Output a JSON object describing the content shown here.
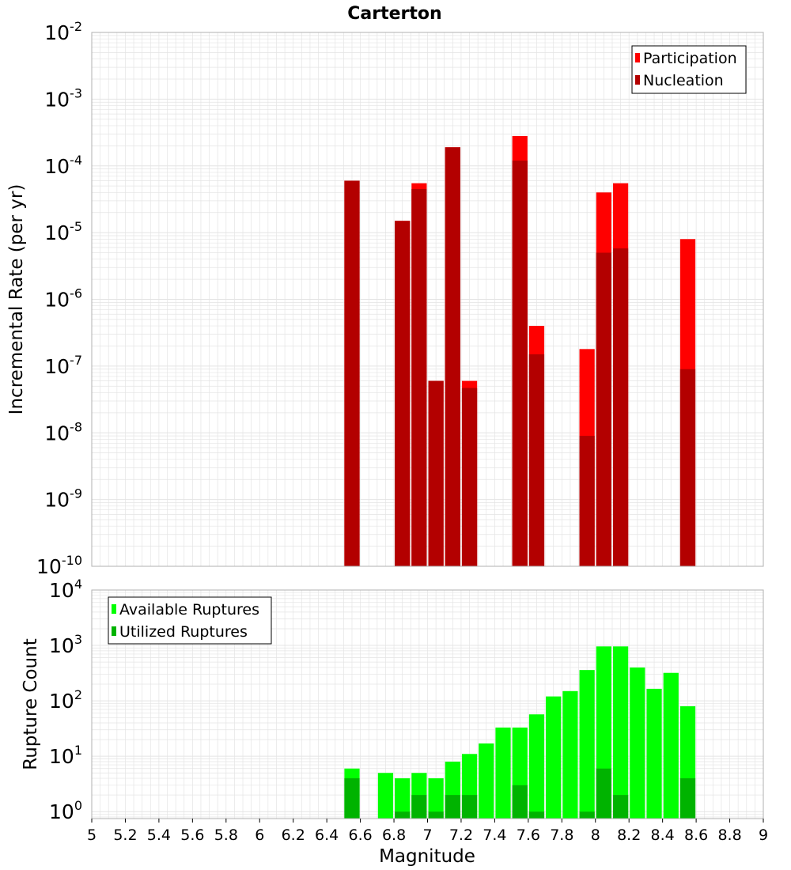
{
  "title": "Carterton",
  "xlabel": "Magnitude",
  "colors": {
    "participation": "#ff0000",
    "nucleation": "#b30000",
    "available": "#00ff00",
    "utilized": "#00b300",
    "grid": "#e4e4e4",
    "frame": "#b0b0b0"
  },
  "chart_data": [
    {
      "type": "bar",
      "title": "Carterton",
      "xlabel": "Magnitude",
      "ylabel": "Incremental Rate (per yr)",
      "yscale": "log",
      "xlim": [
        5,
        9
      ],
      "ylim": [
        1e-10,
        0.01
      ],
      "bar_width": 0.1,
      "legend_position": "top-right",
      "yticks": [
        {
          "base": "10",
          "exp": "-10",
          "value": 1e-10
        },
        {
          "base": "10",
          "exp": "-9",
          "value": 1e-09
        },
        {
          "base": "10",
          "exp": "-8",
          "value": 1e-08
        },
        {
          "base": "10",
          "exp": "-7",
          "value": 1e-07
        },
        {
          "base": "10",
          "exp": "-6",
          "value": 1e-06
        },
        {
          "base": "10",
          "exp": "-5",
          "value": 1e-05
        },
        {
          "base": "10",
          "exp": "-4",
          "value": 0.0001
        },
        {
          "base": "10",
          "exp": "-3",
          "value": 0.001
        },
        {
          "base": "10",
          "exp": "-2",
          "value": 0.01
        }
      ],
      "series": [
        {
          "name": "Participation",
          "color": "#ff0000",
          "x": [
            6.55,
            6.85,
            6.95,
            7.05,
            7.15,
            7.25,
            7.55,
            7.65,
            7.95,
            8.05,
            8.15,
            8.55
          ],
          "values": [
            6e-05,
            1.5e-05,
            5.5e-05,
            6e-08,
            0.00019,
            6e-08,
            0.00028,
            4e-07,
            1.8e-07,
            4e-05,
            5.5e-05,
            8e-06
          ]
        },
        {
          "name": "Nucleation",
          "color": "#b30000",
          "x": [
            6.55,
            6.85,
            6.95,
            7.05,
            7.15,
            7.25,
            7.55,
            7.65,
            7.95,
            8.05,
            8.15,
            8.55
          ],
          "values": [
            6e-05,
            1.5e-05,
            4.5e-05,
            6e-08,
            0.00019,
            4.7e-08,
            0.00012,
            1.5e-07,
            9e-09,
            5e-06,
            5.8e-06,
            9e-08
          ]
        }
      ]
    },
    {
      "type": "bar",
      "xlabel": "Magnitude",
      "ylabel": "Rupture Count",
      "yscale": "log",
      "xlim": [
        5,
        9
      ],
      "ylim": [
        0.75,
        10000
      ],
      "bar_width": 0.1,
      "legend_position": "top-left",
      "yticks": [
        {
          "base": "10",
          "exp": "0",
          "value": 1
        },
        {
          "base": "10",
          "exp": "1",
          "value": 10
        },
        {
          "base": "10",
          "exp": "2",
          "value": 100
        },
        {
          "base": "10",
          "exp": "3",
          "value": 1000
        },
        {
          "base": "10",
          "exp": "4",
          "value": 10000
        }
      ],
      "xticks": [
        "5",
        "5.2",
        "5.4",
        "5.6",
        "5.8",
        "6",
        "6.2",
        "6.4",
        "6.6",
        "6.8",
        "7",
        "7.2",
        "7.4",
        "7.6",
        "7.8",
        "8",
        "8.2",
        "8.4",
        "8.6",
        "8.8",
        "9"
      ],
      "series": [
        {
          "name": "Available Ruptures",
          "color": "#00ff00",
          "x": [
            6.55,
            6.75,
            6.85,
            6.95,
            7.05,
            7.15,
            7.25,
            7.35,
            7.45,
            7.55,
            7.65,
            7.75,
            7.85,
            7.95,
            8.05,
            8.15,
            8.25,
            8.35,
            8.45,
            8.55
          ],
          "values": [
            6,
            5,
            4,
            5,
            4,
            8,
            11,
            17,
            33,
            33,
            57,
            120,
            150,
            360,
            960,
            960,
            400,
            165,
            320,
            80
          ]
        },
        {
          "name": "Utilized Ruptures",
          "color": "#00b300",
          "x": [
            6.55,
            6.85,
            6.95,
            7.05,
            7.15,
            7.25,
            7.55,
            7.65,
            7.95,
            8.05,
            8.15,
            8.55
          ],
          "values": [
            4,
            1,
            2,
            1,
            2,
            2,
            3,
            1,
            1,
            6,
            2,
            4
          ]
        }
      ]
    }
  ]
}
